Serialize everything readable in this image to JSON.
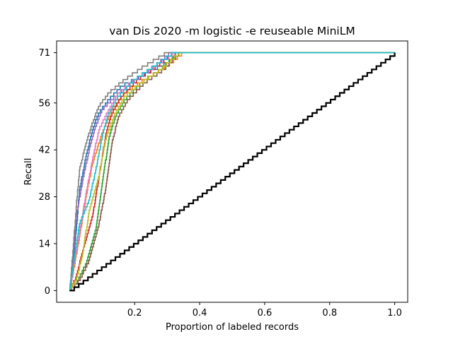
{
  "chart_data": {
    "type": "line",
    "title": "van Dis 2020 -m logistic -e reuseable MiniLM",
    "xlabel": "Proportion of labeled records",
    "ylabel": "Recall",
    "xlim": [
      -0.04,
      1.04
    ],
    "ylim": [
      -3.5,
      74.5
    ],
    "x_ticks": [
      0.2,
      0.4,
      0.6,
      0.8,
      1.0
    ],
    "x_tick_labels": [
      "0.2",
      "0.4",
      "0.6",
      "0.8",
      "1.0"
    ],
    "y_ticks": [
      0,
      14,
      28,
      42,
      56,
      71
    ],
    "y_tick_labels": [
      "0",
      "14",
      "28",
      "42",
      "56",
      "71"
    ],
    "grid": false,
    "total_relevant": 71,
    "baseline": {
      "color": "#000000",
      "x": [
        0,
        1
      ],
      "y": [
        0,
        71
      ]
    },
    "series": [
      {
        "color": "#1f77b4",
        "x": [
          0,
          0.01,
          0.02,
          0.03,
          0.05,
          0.07,
          0.09,
          0.12,
          0.16,
          0.22,
          0.3,
          0.34,
          1.0
        ],
        "y": [
          0,
          8,
          18,
          30,
          40,
          48,
          53,
          57,
          61,
          64,
          68,
          71,
          71
        ]
      },
      {
        "color": "#ff7f0e",
        "x": [
          0,
          0.01,
          0.03,
          0.05,
          0.07,
          0.1,
          0.13,
          0.17,
          0.23,
          0.3,
          0.35,
          1.0
        ],
        "y": [
          0,
          5,
          16,
          28,
          38,
          47,
          54,
          59,
          63,
          67,
          71,
          71
        ]
      },
      {
        "color": "#2ca02c",
        "x": [
          0,
          0.02,
          0.05,
          0.08,
          0.1,
          0.12,
          0.14,
          0.17,
          0.22,
          0.28,
          0.33,
          1.0
        ],
        "y": [
          0,
          2,
          8,
          18,
          32,
          45,
          52,
          57,
          62,
          66,
          71,
          71
        ]
      },
      {
        "color": "#d62728",
        "x": [
          0,
          0.02,
          0.04,
          0.07,
          0.09,
          0.11,
          0.13,
          0.16,
          0.21,
          0.27,
          0.32,
          1.0
        ],
        "y": [
          0,
          4,
          12,
          22,
          34,
          46,
          53,
          58,
          63,
          67,
          71,
          71
        ]
      },
      {
        "color": "#9467bd",
        "x": [
          0,
          0.01,
          0.02,
          0.04,
          0.06,
          0.08,
          0.1,
          0.14,
          0.19,
          0.25,
          0.31,
          1.0
        ],
        "y": [
          0,
          10,
          22,
          33,
          42,
          49,
          54,
          58,
          62,
          66,
          71,
          71
        ]
      },
      {
        "color": "#8c564b",
        "x": [
          0,
          0.03,
          0.06,
          0.09,
          0.11,
          0.13,
          0.15,
          0.18,
          0.23,
          0.29,
          0.34,
          1.0
        ],
        "y": [
          0,
          3,
          9,
          20,
          30,
          44,
          52,
          57,
          62,
          66,
          71,
          71
        ]
      },
      {
        "color": "#e377c2",
        "x": [
          0,
          0.01,
          0.03,
          0.05,
          0.07,
          0.09,
          0.12,
          0.15,
          0.2,
          0.26,
          0.33,
          1.0
        ],
        "y": [
          0,
          6,
          17,
          29,
          39,
          48,
          54,
          59,
          63,
          67,
          71,
          71
        ]
      },
      {
        "color": "#7f7f7f",
        "x": [
          0,
          0.01,
          0.02,
          0.03,
          0.05,
          0.07,
          0.09,
          0.12,
          0.17,
          0.23,
          0.3,
          1.0
        ],
        "y": [
          0,
          12,
          25,
          36,
          44,
          50,
          55,
          59,
          63,
          67,
          71,
          71
        ]
      },
      {
        "color": "#bcbd22",
        "x": [
          0,
          0.02,
          0.04,
          0.06,
          0.09,
          0.11,
          0.14,
          0.17,
          0.22,
          0.28,
          0.34,
          1.0
        ],
        "y": [
          0,
          3,
          11,
          24,
          34,
          45,
          53,
          58,
          62,
          66,
          71,
          71
        ]
      },
      {
        "color": "#17becf",
        "x": [
          0,
          0.01,
          0.03,
          0.06,
          0.08,
          0.1,
          0.12,
          0.15,
          0.2,
          0.26,
          0.32,
          1.0
        ],
        "y": [
          0,
          7,
          20,
          27,
          36,
          46,
          53,
          58,
          63,
          67,
          71,
          71
        ]
      }
    ]
  }
}
